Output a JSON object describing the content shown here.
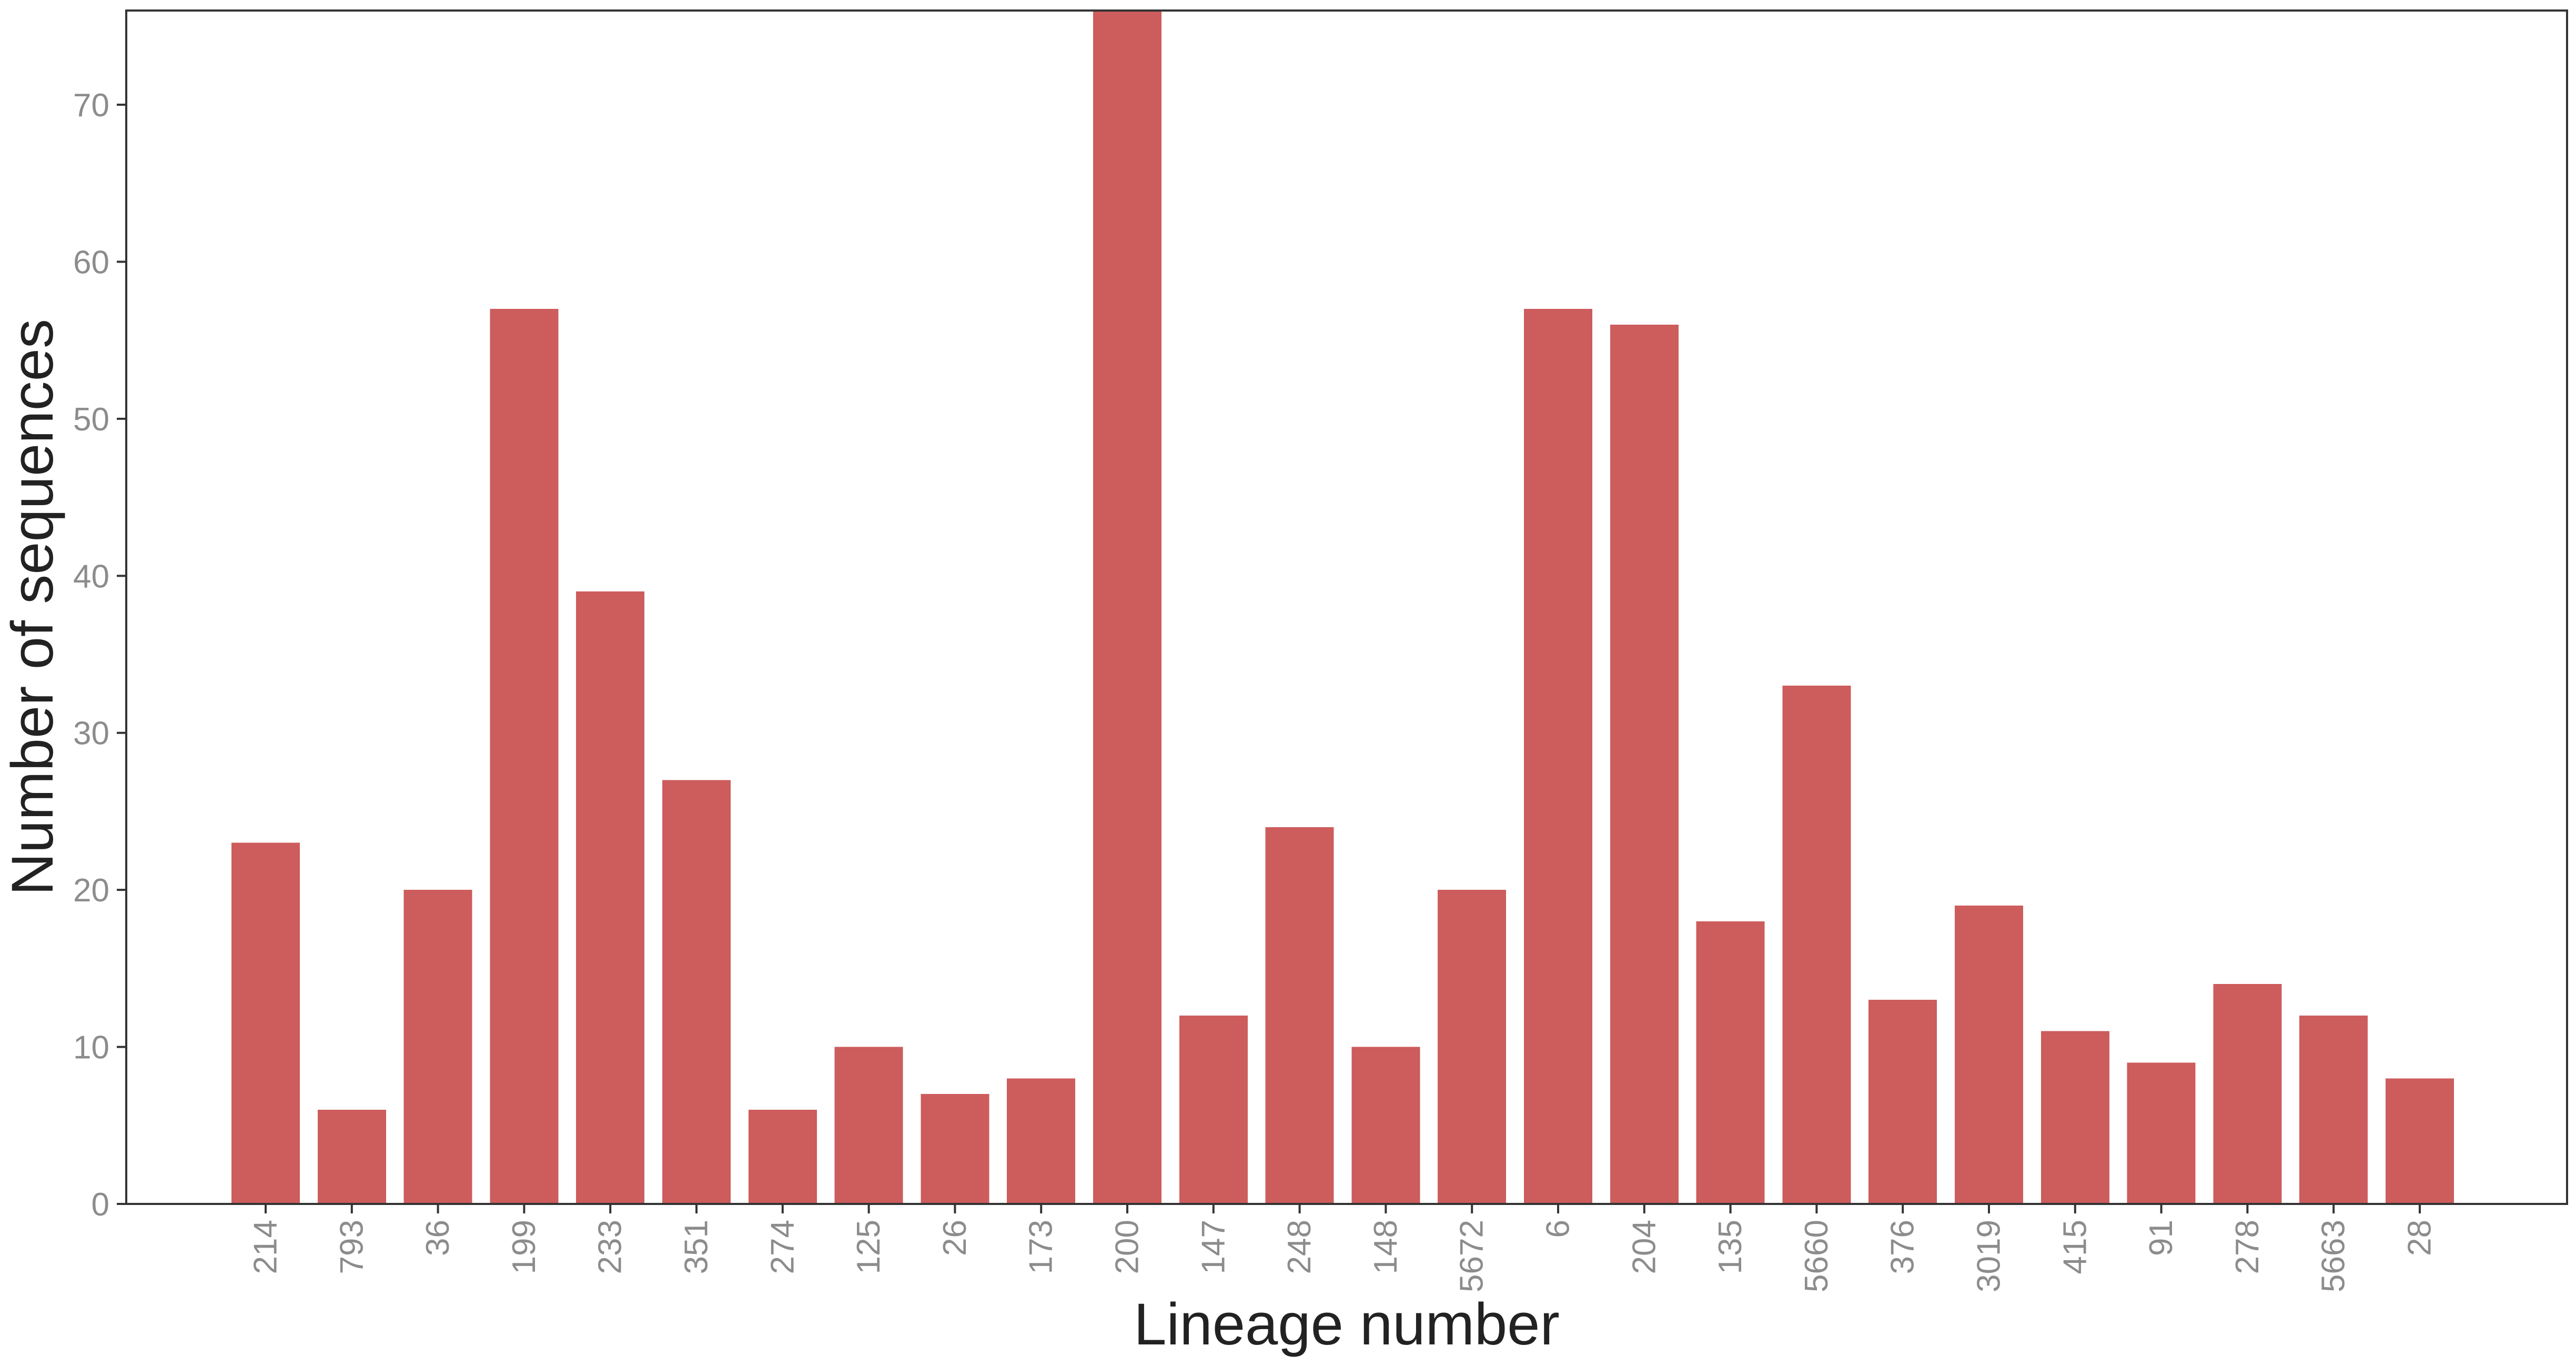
{
  "chart_data": {
    "type": "bar",
    "xlabel": "Lineage number",
    "ylabel": "Number of sequences",
    "categories": [
      "214",
      "793",
      "36",
      "199",
      "233",
      "351",
      "274",
      "125",
      "26",
      "173",
      "200",
      "147",
      "248",
      "148",
      "5672",
      "6",
      "204",
      "135",
      "5660",
      "376",
      "3019",
      "415",
      "91",
      "278",
      "5663",
      "28"
    ],
    "values": [
      23,
      6,
      20,
      57,
      39,
      27,
      6,
      10,
      7,
      8,
      76,
      12,
      24,
      10,
      20,
      57,
      56,
      18,
      33,
      13,
      19,
      11,
      9,
      14,
      12,
      8
    ],
    "ylim": [
      0,
      76
    ],
    "yticks": [
      0,
      10,
      20,
      30,
      40,
      50,
      60,
      70
    ],
    "ytick_labels": [
      "0",
      "10",
      "20",
      "30",
      "40",
      "50",
      "60",
      "70"
    ],
    "grid": false,
    "legend": "none",
    "bar_color": "#cd5c5c",
    "axis_color": "#333333",
    "tick_label_color": "#8c8c8c",
    "axis_title_color": "#222222"
  }
}
